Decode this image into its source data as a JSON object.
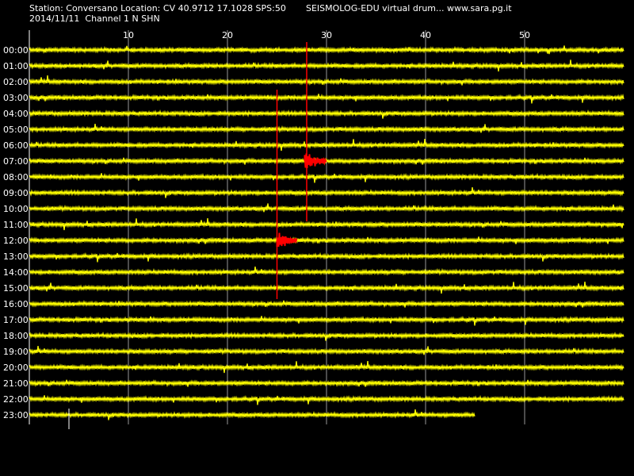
{
  "header": {
    "station_line": "Station: Conversano Location: CV 40.9712 17.1028 SPS:50",
    "title_line": "SEISMOLOG-EDU virtual drum... www.sara.pg.it",
    "date_line": "2014/11/11  Channel 1 N SHN"
  },
  "colors": {
    "background": "#000000",
    "trace": "#ffff00",
    "event": "#ff0000",
    "grid": "#ffffff",
    "text": "#ffffff"
  },
  "chart_data": {
    "type": "line",
    "title": "",
    "xlabel": "",
    "ylabel": "",
    "x_unit": "minutes",
    "xlim": [
      0,
      60
    ],
    "x_ticks": [
      10,
      20,
      30,
      40,
      50
    ],
    "hour_labels": [
      "00:00",
      "01:00",
      "02:00",
      "03:00",
      "04:00",
      "05:00",
      "06:00",
      "07:00",
      "08:00",
      "09:00",
      "10:00",
      "11:00",
      "12:00",
      "13:00",
      "14:00",
      "15:00",
      "16:00",
      "17:00",
      "18:00",
      "19:00",
      "20:00",
      "21:00",
      "22:00",
      "23:00"
    ],
    "last_row_end_minute": 45,
    "grid": true,
    "event_markers": [
      {
        "start_hour": 0,
        "end_hour": 10.8,
        "minute": 28
      },
      {
        "start_hour": 3,
        "end_hour": 15.7,
        "minute": 25
      }
    ],
    "event_bursts": [
      {
        "hour": 7,
        "start_minute": 27.8,
        "end_minute": 30
      },
      {
        "hour": 12,
        "start_minute": 25,
        "end_minute": 27
      }
    ]
  }
}
